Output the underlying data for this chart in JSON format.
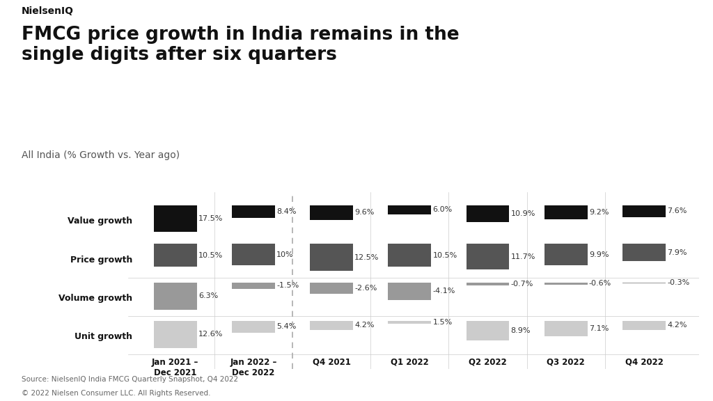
{
  "title_brand": "NielsenIQ",
  "title_main": "FMCG price growth in India remains in the\nsingle digits after six quarters",
  "subtitle": "All India (% Growth vs. Year ago)",
  "source": "Source: NielsenIQ India FMCG Quarterly Snapshot, Q4 2022",
  "copyright": "© 2022 Nielsen Consumer LLC. All Rights Reserved.",
  "categories": [
    "Jan 2021 –\nDec 2021",
    "Jan 2022 –\nDec 2022",
    "Q4 2021",
    "Q1 2022",
    "Q2 2022",
    "Q3 2022",
    "Q4 2022"
  ],
  "value_growth": [
    17.5,
    8.4,
    9.6,
    6.0,
    10.9,
    9.2,
    7.6
  ],
  "price_growth": [
    10.5,
    10.0,
    12.5,
    10.5,
    11.7,
    9.9,
    7.9
  ],
  "volume_growth": [
    6.3,
    -1.5,
    -2.6,
    -4.1,
    -0.7,
    -0.6,
    -0.3
  ],
  "unit_growth": [
    12.6,
    5.4,
    4.2,
    1.5,
    8.9,
    7.1,
    4.2
  ],
  "value_labels": [
    "17.5%",
    "8.4%",
    "9.6%",
    "6.0%",
    "10.9%",
    "9.2%",
    "7.6%"
  ],
  "price_labels": [
    "10.5%",
    "10%",
    "12.5%",
    "10.5%",
    "11.7%",
    "9.9%",
    "7.9%"
  ],
  "volume_labels": [
    "6.3%",
    "-1.5%",
    "-2.6%",
    "-4.1%",
    "-0.7%",
    "-0.6%",
    "-0.3%"
  ],
  "unit_labels": [
    "12.6%",
    "5.4%",
    "4.2%",
    "1.5%",
    "8.9%",
    "7.1%",
    "4.2%"
  ],
  "colors": {
    "value": "#111111",
    "price": "#555555",
    "volume": "#999999",
    "unit": "#cccccc",
    "dashed_line": "#aaaaaa",
    "separator": "#cccccc",
    "background": "#ffffff",
    "text": "#111111",
    "label_text": "#333333"
  },
  "row_labels": [
    "Value growth",
    "Price growth",
    "Volume growth",
    "Unit growth"
  ],
  "figsize": [
    10.24,
    5.76
  ],
  "dpi": 100,
  "dashed_after_index": 1
}
